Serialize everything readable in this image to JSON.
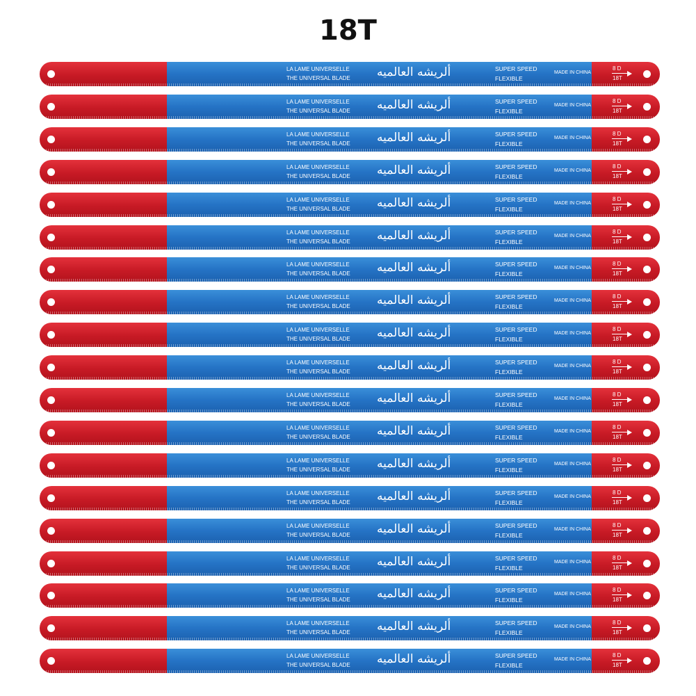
{
  "title": "18T",
  "blade_label": {
    "french": "LA LAME UNIVERSELLE",
    "english": "THE UNIVERSAL BLADE",
    "arabic": "ألريشه العالميه",
    "super_speed": "SUPER SPEED",
    "flexible": "FLEXIBLE",
    "made_in": "MADE IN CHINA",
    "size_badge": "8 D",
    "teeth": "18T"
  },
  "blade_count": 19,
  "colors": {
    "red": "#c71a25",
    "blue": "#2573c5",
    "text": "#ffffff"
  }
}
